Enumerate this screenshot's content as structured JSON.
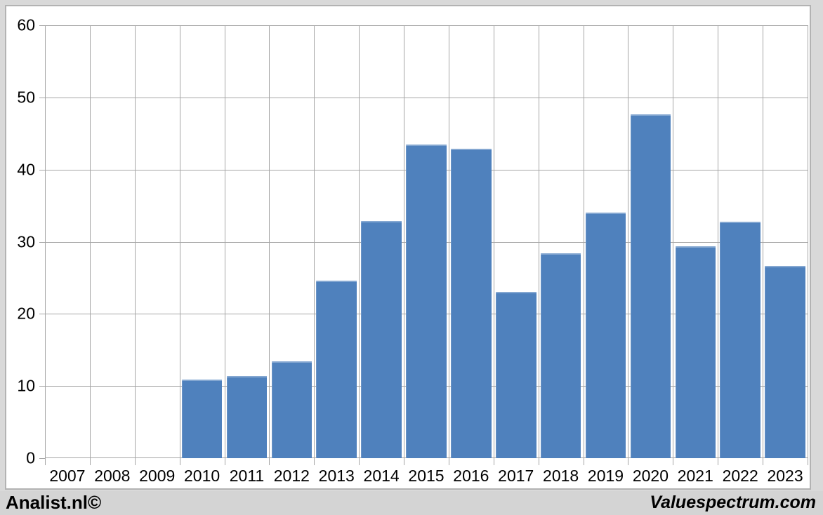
{
  "branding": {
    "left": "Analist.nl©",
    "right": "Valuespectrum.com"
  },
  "colors": {
    "bar": "#4f81bd",
    "grid": "#a6a6a6",
    "panel_background": "#ffffff",
    "page_background": "#d9d9d9",
    "text": "#000000"
  },
  "chart_data": {
    "type": "bar",
    "title": "",
    "xlabel": "",
    "ylabel": "",
    "categories": [
      "2007",
      "2008",
      "2009",
      "2010",
      "2011",
      "2012",
      "2013",
      "2014",
      "2015",
      "2016",
      "2017",
      "2018",
      "2019",
      "2020",
      "2021",
      "2022",
      "2023"
    ],
    "values": [
      null,
      null,
      null,
      10.9,
      11.4,
      13.4,
      24.6,
      32.9,
      43.5,
      42.9,
      23.0,
      28.4,
      34.0,
      47.7,
      29.4,
      32.8,
      26.6
    ],
    "ylim": [
      0,
      60
    ],
    "y_ticks": [
      0,
      10,
      20,
      30,
      40,
      50,
      60
    ],
    "grid": true,
    "legend": false,
    "bar_color": "#4f81bd"
  }
}
